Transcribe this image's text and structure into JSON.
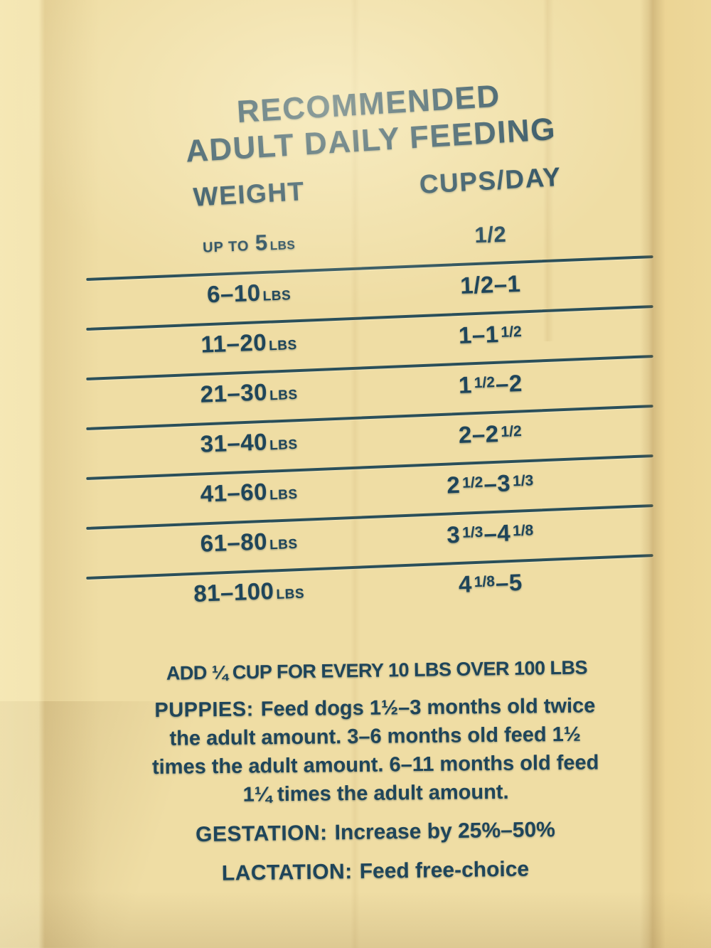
{
  "photo": {
    "background_color": "#efdda4",
    "fold_color": "#e9cc8a",
    "ink_color": "#1f455a",
    "line_color": "#2a4f5a"
  },
  "title": "RECOMMENDED\nADULT DAILY FEEDING",
  "table": {
    "weight_header": "WEIGHT",
    "cups_header": "CUPS/DAY",
    "rows": [
      {
        "weight": [
          [
            "s",
            "UP TO "
          ],
          [
            "n",
            "5"
          ],
          [
            "u",
            "LBS"
          ]
        ],
        "cups": [
          [
            "n",
            "1/2"
          ]
        ]
      },
      {
        "weight": [
          [
            "n",
            "6–10"
          ],
          [
            "u",
            "LBS"
          ]
        ],
        "cups": [
          [
            "n",
            "1/2–1"
          ]
        ]
      },
      {
        "weight": [
          [
            "n",
            "11–20"
          ],
          [
            "u",
            "LBS"
          ]
        ],
        "cups": [
          [
            "n",
            "1–1"
          ],
          [
            "f",
            "1/2"
          ]
        ]
      },
      {
        "weight": [
          [
            "n",
            "21–30"
          ],
          [
            "u",
            "LBS"
          ]
        ],
        "cups": [
          [
            "n",
            "1"
          ],
          [
            "f",
            "1/2"
          ],
          [
            "n",
            "–2"
          ]
        ]
      },
      {
        "weight": [
          [
            "n",
            "31–40"
          ],
          [
            "u",
            "LBS"
          ]
        ],
        "cups": [
          [
            "n",
            "2–2"
          ],
          [
            "f",
            "1/2"
          ]
        ]
      },
      {
        "weight": [
          [
            "n",
            "41–60"
          ],
          [
            "u",
            "LBS"
          ]
        ],
        "cups": [
          [
            "n",
            "2"
          ],
          [
            "f",
            "1/2"
          ],
          [
            "n",
            "–3"
          ],
          [
            "f",
            "1/3"
          ]
        ]
      },
      {
        "weight": [
          [
            "n",
            "61–80"
          ],
          [
            "u",
            "LBS"
          ]
        ],
        "cups": [
          [
            "n",
            "3"
          ],
          [
            "f",
            "1/3"
          ],
          [
            "n",
            "–4"
          ],
          [
            "f",
            "1/8"
          ]
        ]
      },
      {
        "weight": [
          [
            "n",
            "81–100"
          ],
          [
            "u",
            "LBS"
          ]
        ],
        "cups": [
          [
            "n",
            "4"
          ],
          [
            "f",
            "1/8"
          ],
          [
            "n",
            "–5"
          ]
        ]
      }
    ]
  },
  "notes": {
    "add_note": "ADD ¼ CUP FOR EVERY 10 LBS OVER 100 LBS",
    "puppies_label": "PUPPIES:",
    "puppies_text": "Feed dogs 1½–3 months old twice\nthe adult amount. 3–6 months old feed 1½\ntimes the adult amount. 6–11 months old feed\n1¼ times the adult amount.",
    "gestation_label": "GESTATION:",
    "gestation_text": "Increase by 25%–50%",
    "lactation_label": "LACTATION:",
    "lactation_text": "Feed free-choice"
  }
}
